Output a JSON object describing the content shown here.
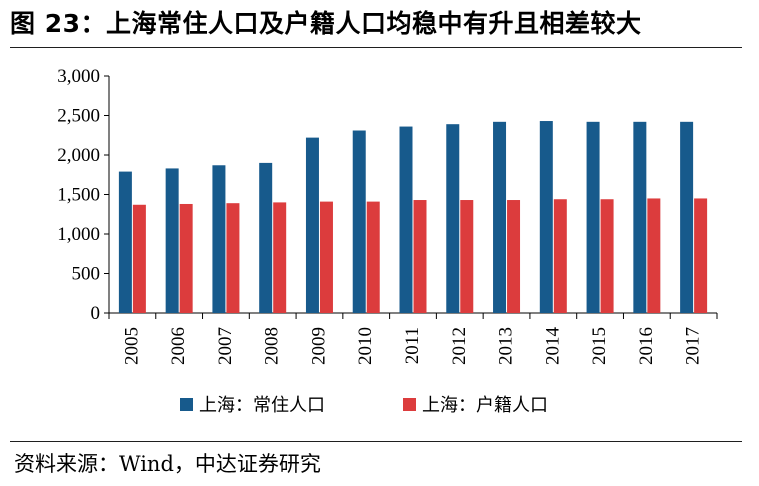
{
  "title": "图 23：上海常住人口及户籍人口均稳中有升且相差较大",
  "source": "资料来源：Wind，中达证券研究",
  "colors": {
    "series1": "#175a8c",
    "series2": "#dc3c3d",
    "axis": "#000000"
  },
  "chart_data": {
    "type": "bar",
    "categories": [
      "2005",
      "2006",
      "2007",
      "2008",
      "2009",
      "2010",
      "2011",
      "2012",
      "2013",
      "2014",
      "2015",
      "2016",
      "2017"
    ],
    "series": [
      {
        "name": "上海：常住人口",
        "values": [
          1790,
          1830,
          1870,
          1900,
          2220,
          2310,
          2360,
          2390,
          2420,
          2430,
          2420,
          2420,
          2420
        ]
      },
      {
        "name": "上海：户籍人口",
        "values": [
          1370,
          1380,
          1390,
          1400,
          1410,
          1410,
          1430,
          1430,
          1430,
          1440,
          1440,
          1450,
          1450
        ]
      }
    ],
    "ylim": [
      0,
      3000
    ],
    "yticks": [
      0,
      500,
      1000,
      1500,
      2000,
      2500,
      3000
    ],
    "ytick_labels": [
      "0",
      "500",
      "1,000",
      "1,500",
      "2,000",
      "2,500",
      "3,000"
    ],
    "grid": false,
    "legend_position": "bottom"
  }
}
